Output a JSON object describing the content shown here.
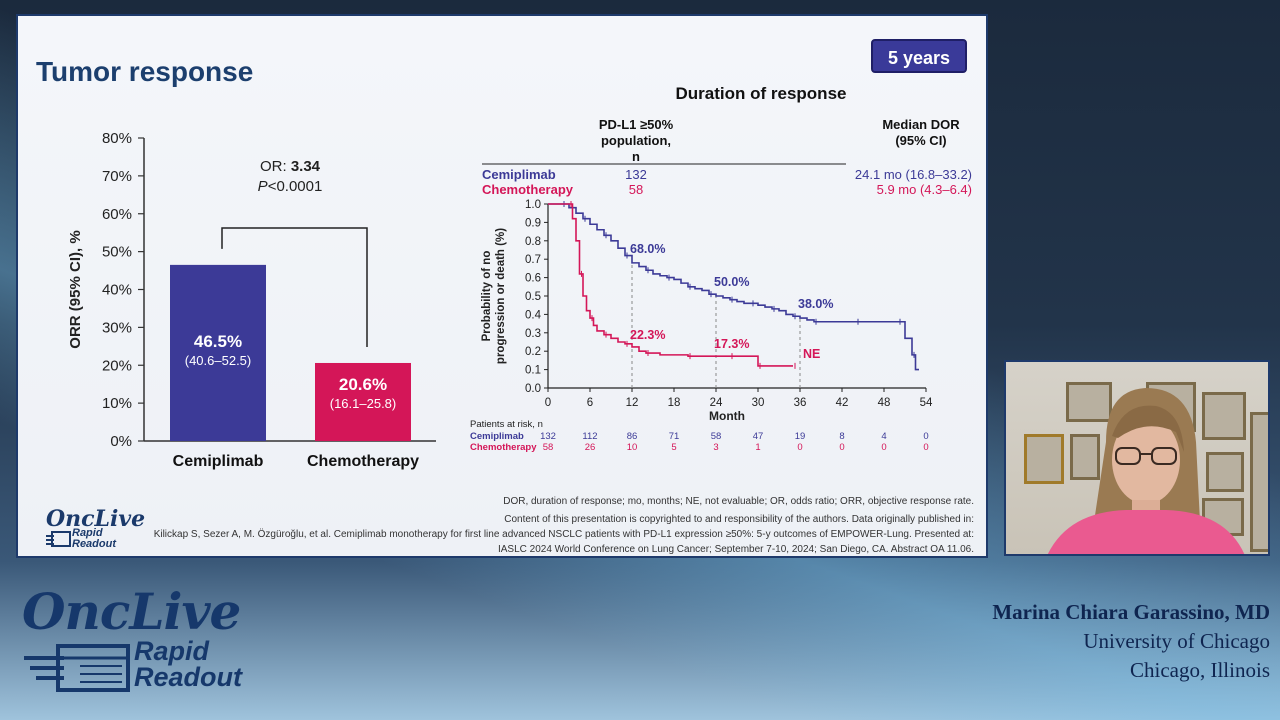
{
  "slide": {
    "title": "Tumor response",
    "badge": "5 years",
    "footnote_abbrev": "DOR, duration of response; mo, months; NE, not evaluable; OR, odds ratio; ORR, objective response rate.",
    "footnote_lines": [
      "Content of this presentation is copyrighted to and responsibility of the authors. Data originally published in:",
      "Kilickap S, Sezer A, M. Özgüroğlu, et al. Cemiplimab monotherapy for first line advanced NSCLC patients with PD-L1 expression ≥50%: 5-y outcomes of EMPOWER-Lung. Presented at:",
      "IASLC 2024 World Conference on Lung Cancer; September 7-10, 2024; San Diego, CA. Abstract OA 11.06."
    ],
    "small_logo": {
      "top": "OncLive",
      "bottom1": "Rapid",
      "bottom2": "Readout"
    }
  },
  "chart_data": [
    {
      "type": "bar",
      "ylabel": "ORR (95% CI), %",
      "ylim": [
        0,
        80
      ],
      "yticks": [
        "0%",
        "10%",
        "20%",
        "30%",
        "40%",
        "50%",
        "60%",
        "70%",
        "80%"
      ],
      "categories": [
        "Cemiplimab",
        "Chemotherapy"
      ],
      "values": [
        46.5,
        20.6
      ],
      "value_labels": [
        "46.5%",
        "20.6%"
      ],
      "ci_labels": [
        "(40.6–52.5)",
        "(16.1–25.8)"
      ],
      "colors": [
        "#3c3a97",
        "#d41658"
      ],
      "annotation": {
        "or_prefix": "OR: ",
        "or_value": "3.34",
        "p_prefix": "P",
        "p_suffix": "<0.0001"
      }
    },
    {
      "type": "line",
      "title": "Duration of response",
      "xlabel": "Month",
      "ylabel_lines": [
        "Probability of no",
        "progression or death (%)"
      ],
      "xlim": [
        0,
        54
      ],
      "ylim": [
        0,
        1
      ],
      "xticks": [
        0,
        6,
        12,
        18,
        24,
        30,
        36,
        42,
        48,
        54
      ],
      "yticks": [
        "0.0",
        "0.1",
        "0.2",
        "0.3",
        "0.4",
        "0.5",
        "0.6",
        "0.7",
        "0.8",
        "0.9",
        "1.0"
      ],
      "header": {
        "population_lines": [
          "PD-L1 ≥50%",
          "population,",
          "n"
        ],
        "median_lines": [
          "Median DOR",
          "(95% CI)"
        ]
      },
      "series": [
        {
          "name": "Cemiplimab",
          "n": "132",
          "median": "24.1 mo (16.8–33.2)",
          "color": "#3c3a97",
          "x": [
            0,
            2,
            3,
            4,
            5,
            6,
            7,
            8,
            9,
            10,
            11,
            12,
            13,
            14,
            15,
            16,
            17,
            18,
            19,
            20,
            21,
            22,
            23,
            24,
            25,
            26,
            27,
            28,
            29,
            30,
            31,
            32,
            33,
            34,
            35,
            36,
            37,
            38,
            40,
            42,
            44,
            46,
            48,
            50,
            51,
            51.5,
            52,
            52.5,
            53
          ],
          "y": [
            1.0,
            1.0,
            0.98,
            0.95,
            0.92,
            0.89,
            0.86,
            0.83,
            0.8,
            0.76,
            0.72,
            0.68,
            0.66,
            0.64,
            0.62,
            0.61,
            0.6,
            0.59,
            0.57,
            0.55,
            0.54,
            0.53,
            0.51,
            0.5,
            0.49,
            0.48,
            0.47,
            0.46,
            0.46,
            0.45,
            0.44,
            0.43,
            0.42,
            0.4,
            0.39,
            0.38,
            0.37,
            0.36,
            0.36,
            0.36,
            0.36,
            0.36,
            0.36,
            0.36,
            0.27,
            0.27,
            0.18,
            0.1,
            0.1
          ],
          "annotations": [
            {
              "x": 12,
              "y": 0.68,
              "label": "68.0%"
            },
            {
              "x": 24,
              "y": 0.5,
              "label": "50.0%"
            },
            {
              "x": 36,
              "y": 0.38,
              "label": "38.0%"
            }
          ]
        },
        {
          "name": "Chemotherapy",
          "n": "58",
          "median": "5.9 mo (4.3–6.4)",
          "color": "#d41658",
          "x": [
            0,
            3,
            3.5,
            4,
            4.5,
            5,
            5.5,
            6,
            6.5,
            7,
            8,
            9,
            10,
            11,
            12,
            13,
            14,
            16,
            18,
            20,
            22,
            24,
            26,
            28,
            29,
            30,
            32,
            34,
            35
          ],
          "y": [
            1.0,
            1.0,
            0.92,
            0.8,
            0.62,
            0.5,
            0.42,
            0.38,
            0.34,
            0.31,
            0.29,
            0.27,
            0.25,
            0.24,
            0.223,
            0.2,
            0.19,
            0.18,
            0.18,
            0.173,
            0.173,
            0.173,
            0.173,
            0.173,
            0.173,
            0.12,
            0.12,
            0.12,
            0.12
          ],
          "annotations": [
            {
              "x": 12,
              "y": 0.223,
              "label": "22.3%"
            },
            {
              "x": 24,
              "y": 0.173,
              "label": "17.3%"
            },
            {
              "x": 35,
              "y": 0.12,
              "label": "NE"
            }
          ]
        }
      ],
      "at_risk": {
        "title": "Patients at risk, n",
        "rows": [
          {
            "name": "Cemiplimab",
            "values": [
              "132",
              "112",
              "86",
              "71",
              "58",
              "47",
              "19",
              "8",
              "4",
              "0"
            ]
          },
          {
            "name": "Chemotherapy",
            "values": [
              "58",
              "26",
              "10",
              "5",
              "3",
              "1",
              "0",
              "0",
              "0",
              "0"
            ]
          }
        ]
      }
    }
  ],
  "lower_third": {
    "logo_top": "OncLive",
    "logo_bottom1": "Rapid",
    "logo_bottom2": "Readout",
    "speaker_name": "Marina Chiara Garassino, MD",
    "speaker_affiliation": "University of Chicago",
    "speaker_location": "Chicago, Illinois"
  }
}
